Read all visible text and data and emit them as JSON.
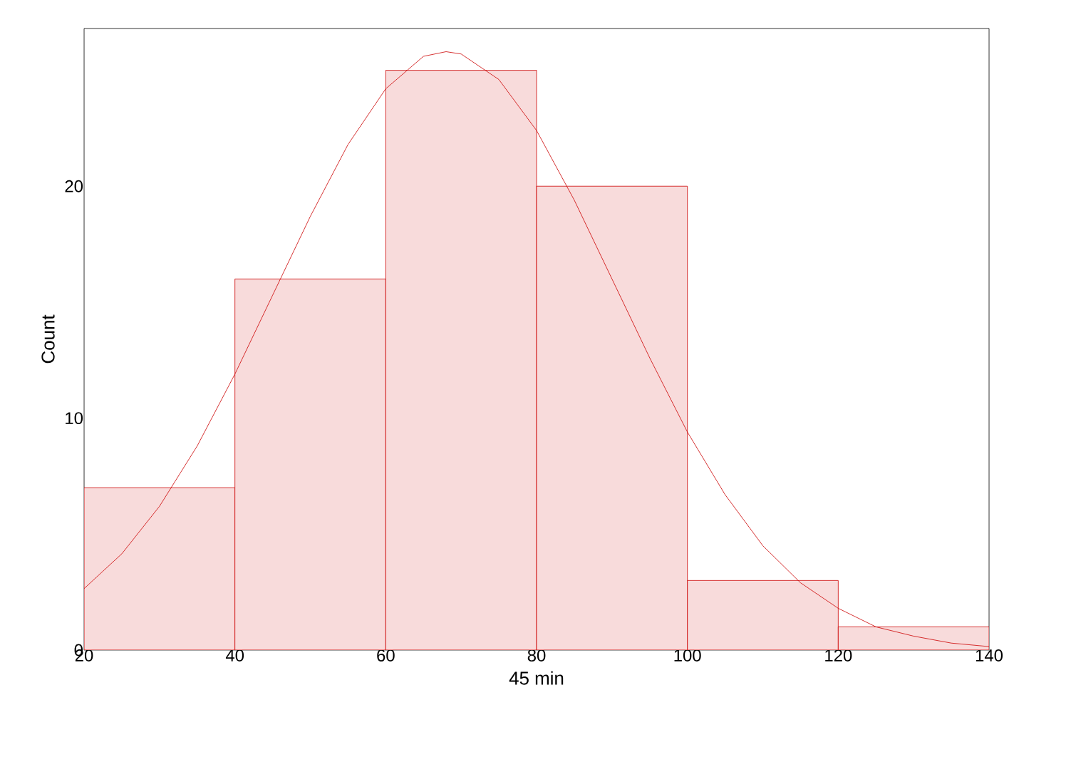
{
  "chart_data": {
    "type": "histogram",
    "xlabel": "45 min",
    "ylabel": "Count",
    "bins": [
      20,
      40,
      60,
      80,
      100,
      120,
      140
    ],
    "values": [
      7,
      16,
      25,
      20,
      3,
      1
    ],
    "color": "#cc0000",
    "series": [
      {
        "type": "line",
        "color": "#cc0000",
        "x": [
          20,
          25,
          30,
          35,
          40,
          45,
          50,
          55,
          60,
          65,
          68,
          70,
          75,
          80,
          85,
          90,
          95,
          100,
          105,
          110,
          115,
          120,
          125,
          130,
          135,
          140
        ],
        "values": [
          2.65,
          4.15,
          6.2,
          8.8,
          11.9,
          15.3,
          18.7,
          21.8,
          24.2,
          25.6,
          25.8,
          25.7,
          24.6,
          22.4,
          19.4,
          16.0,
          12.6,
          9.4,
          6.7,
          4.5,
          2.9,
          1.8,
          1.0,
          0.6,
          0.3,
          0.15
        ]
      }
    ],
    "xlim": [
      20,
      140
    ],
    "xticks": [
      20,
      40,
      60,
      80,
      100,
      120,
      140
    ],
    "ylim": [
      0,
      26.8
    ],
    "yticks": [
      0,
      10,
      20
    ]
  }
}
